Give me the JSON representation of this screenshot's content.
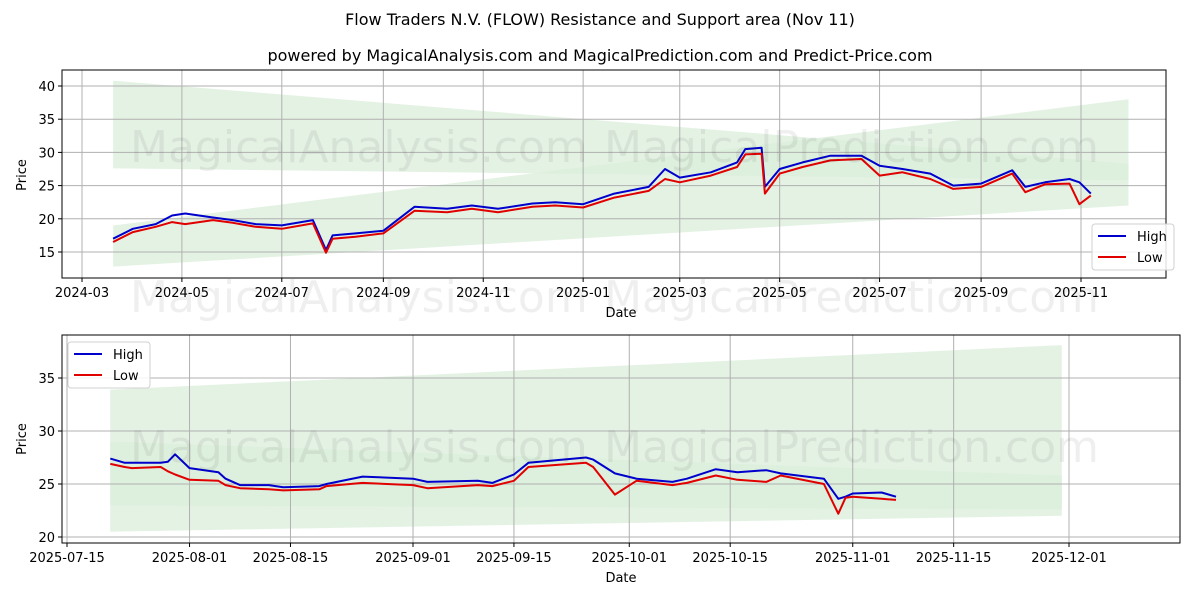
{
  "title": "Flow Traders N.V. (FLOW) Resistance and Support area (Nov 11)",
  "subtitle": "powered by MagicalAnalysis.com and MagicalPrediction.com and Predict-Price.com",
  "watermarks": [
    "MagicalAnalysis.com",
    "MagicalPrediction.com"
  ],
  "colors": {
    "high": "#0000cc",
    "low": "#e00000",
    "band_light": "#dbeedb",
    "band_dark": "#c6e3c6",
    "grid": "#b0b0b0"
  },
  "chart_data": [
    {
      "type": "line",
      "title": "Flow Traders N.V. (FLOW) Resistance and Support area (Nov 11)",
      "xlabel": "Date",
      "ylabel": "Price",
      "ylim": [
        11,
        42.5
      ],
      "yticks": [
        15,
        20,
        25,
        30,
        35,
        40
      ],
      "xticks": [
        "2024-03",
        "2024-05",
        "2024-07",
        "2024-09",
        "2024-11",
        "2025-01",
        "2025-03",
        "2025-05",
        "2025-07",
        "2025-09",
        "2025-11"
      ],
      "grid": true,
      "legend": {
        "position": "lower right",
        "entries": [
          "High",
          "Low"
        ]
      },
      "series": [
        {
          "name": "High",
          "color": "#0000cc",
          "x": [
            "2024-03-20",
            "2024-04-01",
            "2024-04-15",
            "2024-04-25",
            "2024-05-03",
            "2024-05-20",
            "2024-06-01",
            "2024-06-15",
            "2024-07-01",
            "2024-07-20",
            "2024-07-28",
            "2024-08-01",
            "2024-08-15",
            "2024-09-01",
            "2024-09-20",
            "2024-10-10",
            "2024-10-25",
            "2024-11-10",
            "2024-12-01",
            "2024-12-15",
            "2025-01-01",
            "2025-01-20",
            "2025-02-10",
            "2025-02-20",
            "2025-03-01",
            "2025-03-20",
            "2025-04-05",
            "2025-04-10",
            "2025-04-20",
            "2025-04-22",
            "2025-05-01",
            "2025-05-15",
            "2025-06-01",
            "2025-06-20",
            "2025-07-01",
            "2025-07-15",
            "2025-08-01",
            "2025-08-15",
            "2025-09-01",
            "2025-09-20",
            "2025-09-28",
            "2025-10-10",
            "2025-10-25",
            "2025-10-31",
            "2025-11-07"
          ],
          "values": [
            17.0,
            18.5,
            19.2,
            20.5,
            20.8,
            20.2,
            19.8,
            19.2,
            19.0,
            19.8,
            15.3,
            17.5,
            17.8,
            18.2,
            21.8,
            21.5,
            22.0,
            21.5,
            22.3,
            22.5,
            22.2,
            23.8,
            24.8,
            27.5,
            26.2,
            27.0,
            28.5,
            30.5,
            30.7,
            24.8,
            27.5,
            28.5,
            29.5,
            29.5,
            28.0,
            27.5,
            26.8,
            25.0,
            25.3,
            27.3,
            24.8,
            25.5,
            26.0,
            25.5,
            23.8
          ]
        },
        {
          "name": "Low",
          "color": "#e00000",
          "x": [
            "2024-03-20",
            "2024-04-01",
            "2024-04-15",
            "2024-04-25",
            "2024-05-03",
            "2024-05-20",
            "2024-06-01",
            "2024-06-15",
            "2024-07-01",
            "2024-07-20",
            "2024-07-28",
            "2024-08-01",
            "2024-08-15",
            "2024-09-01",
            "2024-09-20",
            "2024-10-10",
            "2024-10-25",
            "2024-11-10",
            "2024-12-01",
            "2024-12-15",
            "2025-01-01",
            "2025-01-20",
            "2025-02-10",
            "2025-02-20",
            "2025-03-01",
            "2025-03-20",
            "2025-04-05",
            "2025-04-10",
            "2025-04-20",
            "2025-04-22",
            "2025-05-01",
            "2025-05-15",
            "2025-06-01",
            "2025-06-20",
            "2025-07-01",
            "2025-07-15",
            "2025-08-01",
            "2025-08-15",
            "2025-09-01",
            "2025-09-20",
            "2025-09-28",
            "2025-10-10",
            "2025-10-25",
            "2025-10-31",
            "2025-11-07"
          ],
          "values": [
            16.5,
            18.0,
            18.8,
            19.5,
            19.2,
            19.8,
            19.4,
            18.8,
            18.5,
            19.3,
            14.9,
            17.0,
            17.3,
            17.8,
            21.2,
            21.0,
            21.5,
            21.0,
            21.8,
            22.0,
            21.7,
            23.2,
            24.2,
            26.0,
            25.5,
            26.5,
            27.8,
            29.7,
            29.8,
            23.8,
            26.8,
            27.8,
            28.8,
            29.0,
            26.5,
            27.0,
            26.0,
            24.5,
            24.8,
            26.8,
            24.0,
            25.2,
            25.3,
            22.2,
            23.5
          ]
        }
      ],
      "bands": [
        {
          "name": "Resistance (upper band)",
          "x_start": "2024-03-20",
          "x_end": "2025-11-30",
          "top": [
            40.8,
            28.3
          ],
          "bottom": [
            27.6,
            25.8
          ]
        },
        {
          "name": "Support (lower band)",
          "x_start": "2024-03-20",
          "x_end": "2025-11-30",
          "top": [
            19.0,
            38.0
          ],
          "bottom": [
            12.8,
            22.0
          ]
        }
      ]
    },
    {
      "type": "line",
      "xlabel": "Date",
      "ylabel": "Price",
      "ylim": [
        19.5,
        39
      ],
      "yticks": [
        20,
        25,
        30,
        35
      ],
      "xticks": [
        "2025-07-15",
        "2025-08-01",
        "2025-08-15",
        "2025-09-01",
        "2025-09-15",
        "2025-10-01",
        "2025-10-15",
        "2025-11-01",
        "2025-11-15",
        "2025-12-01"
      ],
      "grid": true,
      "legend": {
        "position": "upper left",
        "entries": [
          "High",
          "Low"
        ]
      },
      "series": [
        {
          "name": "High",
          "color": "#0000cc",
          "x": [
            "2025-07-21",
            "2025-07-23",
            "2025-07-24",
            "2025-07-28",
            "2025-07-29",
            "2025-07-30",
            "2025-08-01",
            "2025-08-05",
            "2025-08-06",
            "2025-08-08",
            "2025-08-12",
            "2025-08-14",
            "2025-08-19",
            "2025-08-20",
            "2025-08-25",
            "2025-09-01",
            "2025-09-03",
            "2025-09-10",
            "2025-09-12",
            "2025-09-15",
            "2025-09-17",
            "2025-09-25",
            "2025-09-26",
            "2025-09-29",
            "2025-10-02",
            "2025-10-07",
            "2025-10-09",
            "2025-10-13",
            "2025-10-16",
            "2025-10-20",
            "2025-10-22",
            "2025-10-28",
            "2025-10-30",
            "2025-10-31",
            "2025-11-01",
            "2025-11-05",
            "2025-11-07"
          ],
          "values": [
            27.4,
            27.0,
            27.0,
            27.0,
            27.1,
            27.8,
            26.5,
            26.1,
            25.5,
            24.9,
            24.9,
            24.7,
            24.8,
            25.0,
            25.7,
            25.5,
            25.2,
            25.3,
            25.1,
            25.9,
            27.0,
            27.5,
            27.3,
            26.0,
            25.5,
            25.2,
            25.5,
            26.4,
            26.1,
            26.3,
            26.0,
            25.5,
            23.6,
            23.8,
            24.1,
            24.2,
            23.8
          ]
        },
        {
          "name": "Low",
          "color": "#e00000",
          "x": [
            "2025-07-21",
            "2025-07-23",
            "2025-07-24",
            "2025-07-28",
            "2025-07-29",
            "2025-07-30",
            "2025-08-01",
            "2025-08-05",
            "2025-08-06",
            "2025-08-08",
            "2025-08-12",
            "2025-08-14",
            "2025-08-19",
            "2025-08-20",
            "2025-08-25",
            "2025-09-01",
            "2025-09-03",
            "2025-09-10",
            "2025-09-12",
            "2025-09-15",
            "2025-09-17",
            "2025-09-25",
            "2025-09-26",
            "2025-09-29",
            "2025-10-02",
            "2025-10-07",
            "2025-10-09",
            "2025-10-13",
            "2025-10-16",
            "2025-10-20",
            "2025-10-22",
            "2025-10-28",
            "2025-10-30",
            "2025-10-31",
            "2025-11-01",
            "2025-11-05",
            "2025-11-07"
          ],
          "values": [
            26.9,
            26.6,
            26.5,
            26.6,
            26.2,
            25.9,
            25.4,
            25.3,
            24.9,
            24.6,
            24.5,
            24.4,
            24.5,
            24.8,
            25.1,
            24.9,
            24.6,
            24.9,
            24.8,
            25.3,
            26.6,
            27.0,
            26.6,
            24.0,
            25.3,
            24.9,
            25.1,
            25.8,
            25.4,
            25.2,
            25.8,
            25.0,
            22.2,
            23.7,
            23.8,
            23.6,
            23.5
          ]
        }
      ],
      "bands": [
        {
          "name": "Resistance (upper band)",
          "x_start": "2025-07-21",
          "x_end": "2025-11-30",
          "top": [
            33.9,
            38.1
          ],
          "bottom": [
            20.5,
            22.0
          ]
        },
        {
          "name": "Support (lower band)",
          "x_start": "2025-07-21",
          "x_end": "2025-11-30",
          "top": [
            29.0,
            25.8
          ],
          "bottom": [
            23.0,
            22.6
          ]
        }
      ]
    }
  ]
}
